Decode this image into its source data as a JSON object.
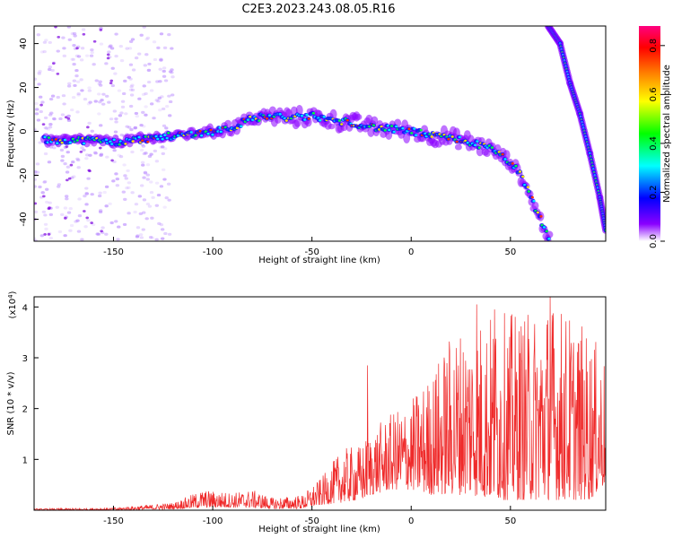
{
  "figure_title": "C2E3.2023.243.08.05.R16",
  "chart_data": [
    {
      "type": "heatmap",
      "xlabel": "Height of straight line (km)",
      "ylabel": "Frequency (Hz)",
      "xlim": [
        -190,
        98
      ],
      "ylim": [
        -50,
        48
      ],
      "xticks": [
        "-150",
        "-100",
        "-50",
        "0",
        "50"
      ],
      "yticks": [
        "40",
        "20",
        "0",
        "-20",
        "-40"
      ],
      "colorbar": {
        "label": "Normalized spectral amplitude",
        "range": [
          0,
          0.88
        ],
        "ticks": [
          "0.0",
          "0.2",
          "0.4",
          "0.6",
          "0.8"
        ],
        "colors": [
          "#ffffff",
          "#8a00ff",
          "#0000ff",
          "#00ffff",
          "#00ff00",
          "#ffff00",
          "#ff8000",
          "#ff0000",
          "#ff0080"
        ]
      },
      "main_trace": [
        {
          "x": -185,
          "y": -4
        },
        {
          "x": -170,
          "y": -4
        },
        {
          "x": -160,
          "y": -4
        },
        {
          "x": -150,
          "y": -5
        },
        {
          "x": -140,
          "y": -4
        },
        {
          "x": -130,
          "y": -3
        },
        {
          "x": -120,
          "y": -2
        },
        {
          "x": -110,
          "y": -1
        },
        {
          "x": -100,
          "y": 0
        },
        {
          "x": -90,
          "y": 2
        },
        {
          "x": -80,
          "y": 6
        },
        {
          "x": -70,
          "y": 7
        },
        {
          "x": -60,
          "y": 6
        },
        {
          "x": -50,
          "y": 7
        },
        {
          "x": -40,
          "y": 5
        },
        {
          "x": -30,
          "y": 4
        },
        {
          "x": -20,
          "y": 2
        },
        {
          "x": -10,
          "y": 1
        },
        {
          "x": 0,
          "y": 0
        },
        {
          "x": 10,
          "y": -2
        },
        {
          "x": 20,
          "y": -3
        },
        {
          "x": 30,
          "y": -5
        },
        {
          "x": 40,
          "y": -8
        },
        {
          "x": 50,
          "y": -14
        },
        {
          "x": 55,
          "y": -20
        },
        {
          "x": 60,
          "y": -30
        },
        {
          "x": 65,
          "y": -40
        },
        {
          "x": 70,
          "y": -50
        }
      ],
      "secondary_trace": [
        {
          "x": 69,
          "y": 48
        },
        {
          "x": 75,
          "y": 40
        },
        {
          "x": 80,
          "y": 22
        },
        {
          "x": 85,
          "y": 8
        },
        {
          "x": 90,
          "y": -10
        },
        {
          "x": 95,
          "y": -30
        },
        {
          "x": 98,
          "y": -45
        }
      ]
    },
    {
      "type": "line",
      "xlabel": "Height of straight line (km)",
      "ylabel": "SNR (10 * v/v)",
      "multiplier": "(x10",
      "multiplier_exp": "4",
      "multiplier_close": ")",
      "xlim": [
        -190,
        98
      ],
      "ylim": [
        0,
        4.2
      ],
      "xticks": [
        "-150",
        "-100",
        "-50",
        "0",
        "50"
      ],
      "yticks": [
        "4",
        "3",
        "2",
        "1"
      ],
      "color": "#ef2a2a",
      "envelope": [
        {
          "x": -190,
          "lo": 0.0,
          "hi": 0.03
        },
        {
          "x": -150,
          "lo": 0.0,
          "hi": 0.05
        },
        {
          "x": -120,
          "lo": 0.02,
          "hi": 0.15
        },
        {
          "x": -105,
          "lo": 0.05,
          "hi": 0.4
        },
        {
          "x": -90,
          "lo": 0.05,
          "hi": 0.35
        },
        {
          "x": -80,
          "lo": 0.05,
          "hi": 0.4
        },
        {
          "x": -70,
          "lo": 0.02,
          "hi": 0.25
        },
        {
          "x": -55,
          "lo": 0.03,
          "hi": 0.3
        },
        {
          "x": -45,
          "lo": 0.1,
          "hi": 0.65
        },
        {
          "x": -35,
          "lo": 0.15,
          "hi": 1.2
        },
        {
          "x": -25,
          "lo": 0.2,
          "hi": 1.3
        },
        {
          "x": -20,
          "lo": 0.3,
          "hi": 1.6
        },
        {
          "x": -10,
          "lo": 0.4,
          "hi": 1.9
        },
        {
          "x": 0,
          "lo": 0.4,
          "hi": 2.2
        },
        {
          "x": 10,
          "lo": 0.3,
          "hi": 2.7
        },
        {
          "x": 20,
          "lo": 0.3,
          "hi": 3.5
        },
        {
          "x": 30,
          "lo": 0.3,
          "hi": 3.8
        },
        {
          "x": 40,
          "lo": 0.2,
          "hi": 3.9
        },
        {
          "x": 50,
          "lo": 0.2,
          "hi": 3.9
        },
        {
          "x": 60,
          "lo": 0.2,
          "hi": 3.9
        },
        {
          "x": 70,
          "lo": 0.2,
          "hi": 4.2
        },
        {
          "x": 80,
          "lo": 0.2,
          "hi": 3.9
        },
        {
          "x": 90,
          "lo": 0.2,
          "hi": 3.5
        },
        {
          "x": 98,
          "lo": 0.5,
          "hi": 3.0
        }
      ],
      "peaks": [
        {
          "x": -22,
          "y": 2.85
        },
        {
          "x": 33,
          "y": 4.05
        },
        {
          "x": 70,
          "y": 4.2
        },
        {
          "x": 42,
          "y": 3.95
        }
      ]
    }
  ]
}
